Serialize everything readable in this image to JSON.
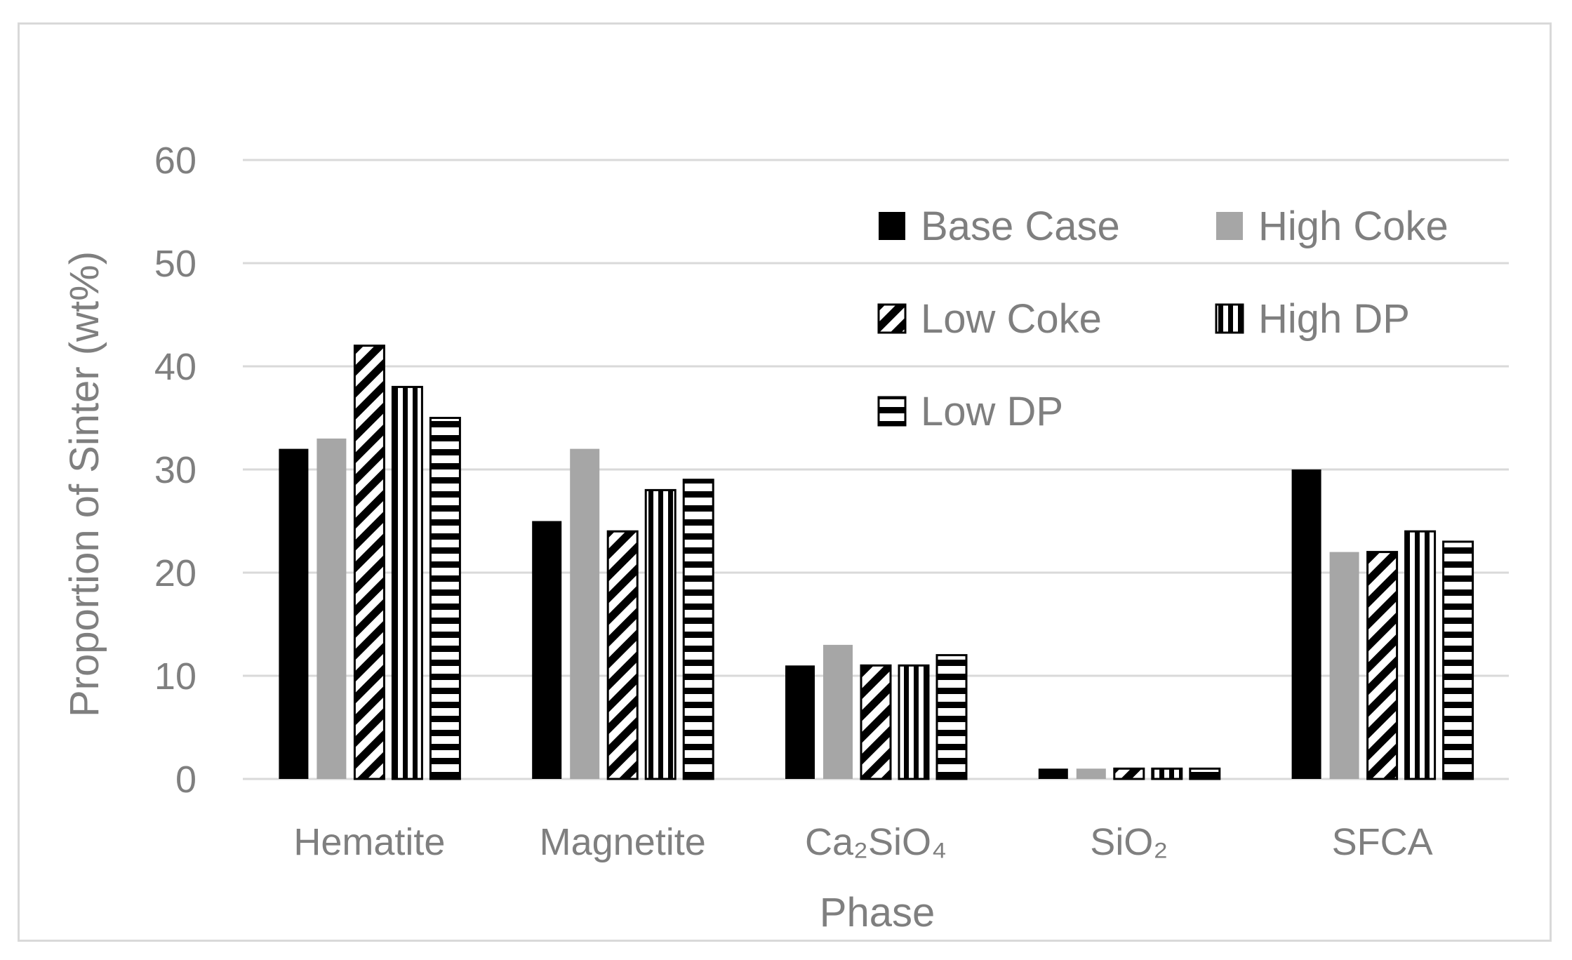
{
  "chart_data": {
    "type": "bar",
    "title": "",
    "xlabel": "Phase",
    "ylabel": "Proportion of Sinter (wt%)",
    "ylim": [
      0,
      60
    ],
    "yticks": [
      0,
      10,
      20,
      30,
      40,
      50,
      60
    ],
    "grid": true,
    "legend_position": "top-right",
    "categories": [
      "Hematite",
      "Magnetite",
      "Ca₂SiO₄",
      "SiO₂",
      "SFCA"
    ],
    "series": [
      {
        "name": "Base Case",
        "pattern": "solid-black",
        "values": [
          32,
          25,
          11,
          1,
          30
        ]
      },
      {
        "name": "High Coke",
        "pattern": "solid-gray",
        "values": [
          33,
          32,
          13,
          1,
          22
        ]
      },
      {
        "name": "Low Coke",
        "pattern": "diagonal",
        "values": [
          42,
          24,
          11,
          1,
          22
        ]
      },
      {
        "name": "High DP",
        "pattern": "vertical",
        "values": [
          38,
          28,
          11,
          1,
          24
        ]
      },
      {
        "name": "Low DP",
        "pattern": "horizontal",
        "values": [
          35,
          29,
          12,
          1,
          23
        ]
      }
    ],
    "colors": {
      "grid": "#d9d9d9",
      "text": "#7f7f7f",
      "black": "#000000",
      "gray": "#a6a6a6"
    }
  }
}
